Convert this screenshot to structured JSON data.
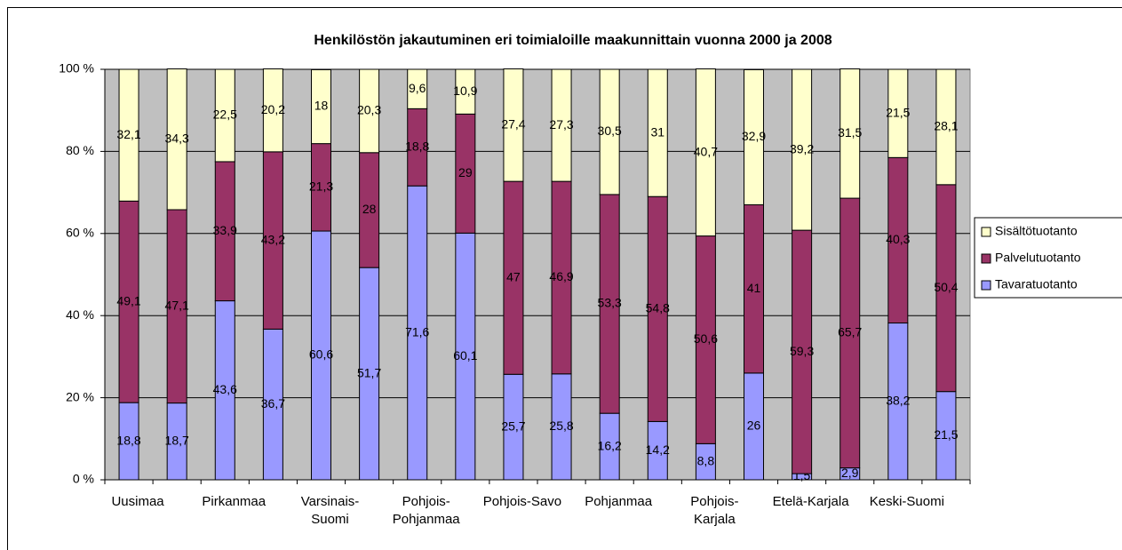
{
  "chart_data": {
    "type": "stacked_bar",
    "title": "Henkilöstön jakautuminen eri toimialoille maakunnittain vuonna 2000 ja 2008",
    "categories": [
      "Uusimaa",
      null,
      "Pirkanmaa",
      null,
      "Varsinais-Suomi",
      null,
      "Pohjois-Pohjanmaa",
      null,
      "Pohjois-Savo",
      null,
      "Pohjanmaa",
      null,
      "Pohjois-Karjala",
      null,
      "Etelä-Karjala",
      null,
      "Keski-Suomi",
      null
    ],
    "series": [
      {
        "name": "Tavaratuotanto",
        "color": "#9999ff",
        "values": [
          18.8,
          18.7,
          43.6,
          36.7,
          60.6,
          51.7,
          71.6,
          60.1,
          25.7,
          25.8,
          16.2,
          14.2,
          8.8,
          26,
          1.5,
          2.9,
          38.2,
          21.5
        ],
        "value_labels": [
          "18,8",
          "18,7",
          "43,6",
          "36,7",
          "60,6",
          "51,7",
          "71,6",
          "60,1",
          "25,7",
          "25,8",
          "16,2",
          "14,2",
          "8,8",
          "26",
          "1,5",
          "2,9",
          "38,2",
          "21,5"
        ]
      },
      {
        "name": "Palvelutuotanto",
        "color": "#993366",
        "values": [
          49.1,
          47.1,
          33.9,
          43.2,
          21.3,
          28,
          18.8,
          29,
          47,
          46.9,
          53.3,
          54.8,
          50.6,
          41,
          59.3,
          65.7,
          40.3,
          50.4
        ],
        "value_labels": [
          "49,1",
          "47,1",
          "33,9",
          "43,2",
          "21,3",
          "28",
          "18,8",
          "29",
          "47",
          "46,9",
          "53,3",
          "54,8",
          "50,6",
          "41",
          "59,3",
          "65,7",
          "40,3",
          "50,4"
        ]
      },
      {
        "name": "Sisältötuotanto",
        "color": "#ffffcc",
        "values": [
          32.1,
          34.3,
          22.5,
          20.2,
          18,
          20.3,
          9.6,
          10.9,
          27.4,
          27.3,
          30.5,
          31,
          40.7,
          32.9,
          39.2,
          31.5,
          21.5,
          28.1
        ],
        "value_labels": [
          "32,1",
          "34,3",
          "22,5",
          "20,2",
          "18",
          "20,3",
          "9,6",
          "10,9",
          "27,4",
          "27,3",
          "30,5",
          "31",
          "40,7",
          "32,9",
          "39,2",
          "31,5",
          "21,5",
          "28,1"
        ]
      }
    ],
    "ylim": [
      0,
      100
    ],
    "yticks": [
      {
        "value": 0,
        "label": "0 %"
      },
      {
        "value": 20,
        "label": "20 %"
      },
      {
        "value": 40,
        "label": "40 %"
      },
      {
        "value": 60,
        "label": "60 %"
      },
      {
        "value": 80,
        "label": "80 %"
      },
      {
        "value": 100,
        "label": "100 %"
      }
    ],
    "grid": true,
    "legend": "right"
  }
}
